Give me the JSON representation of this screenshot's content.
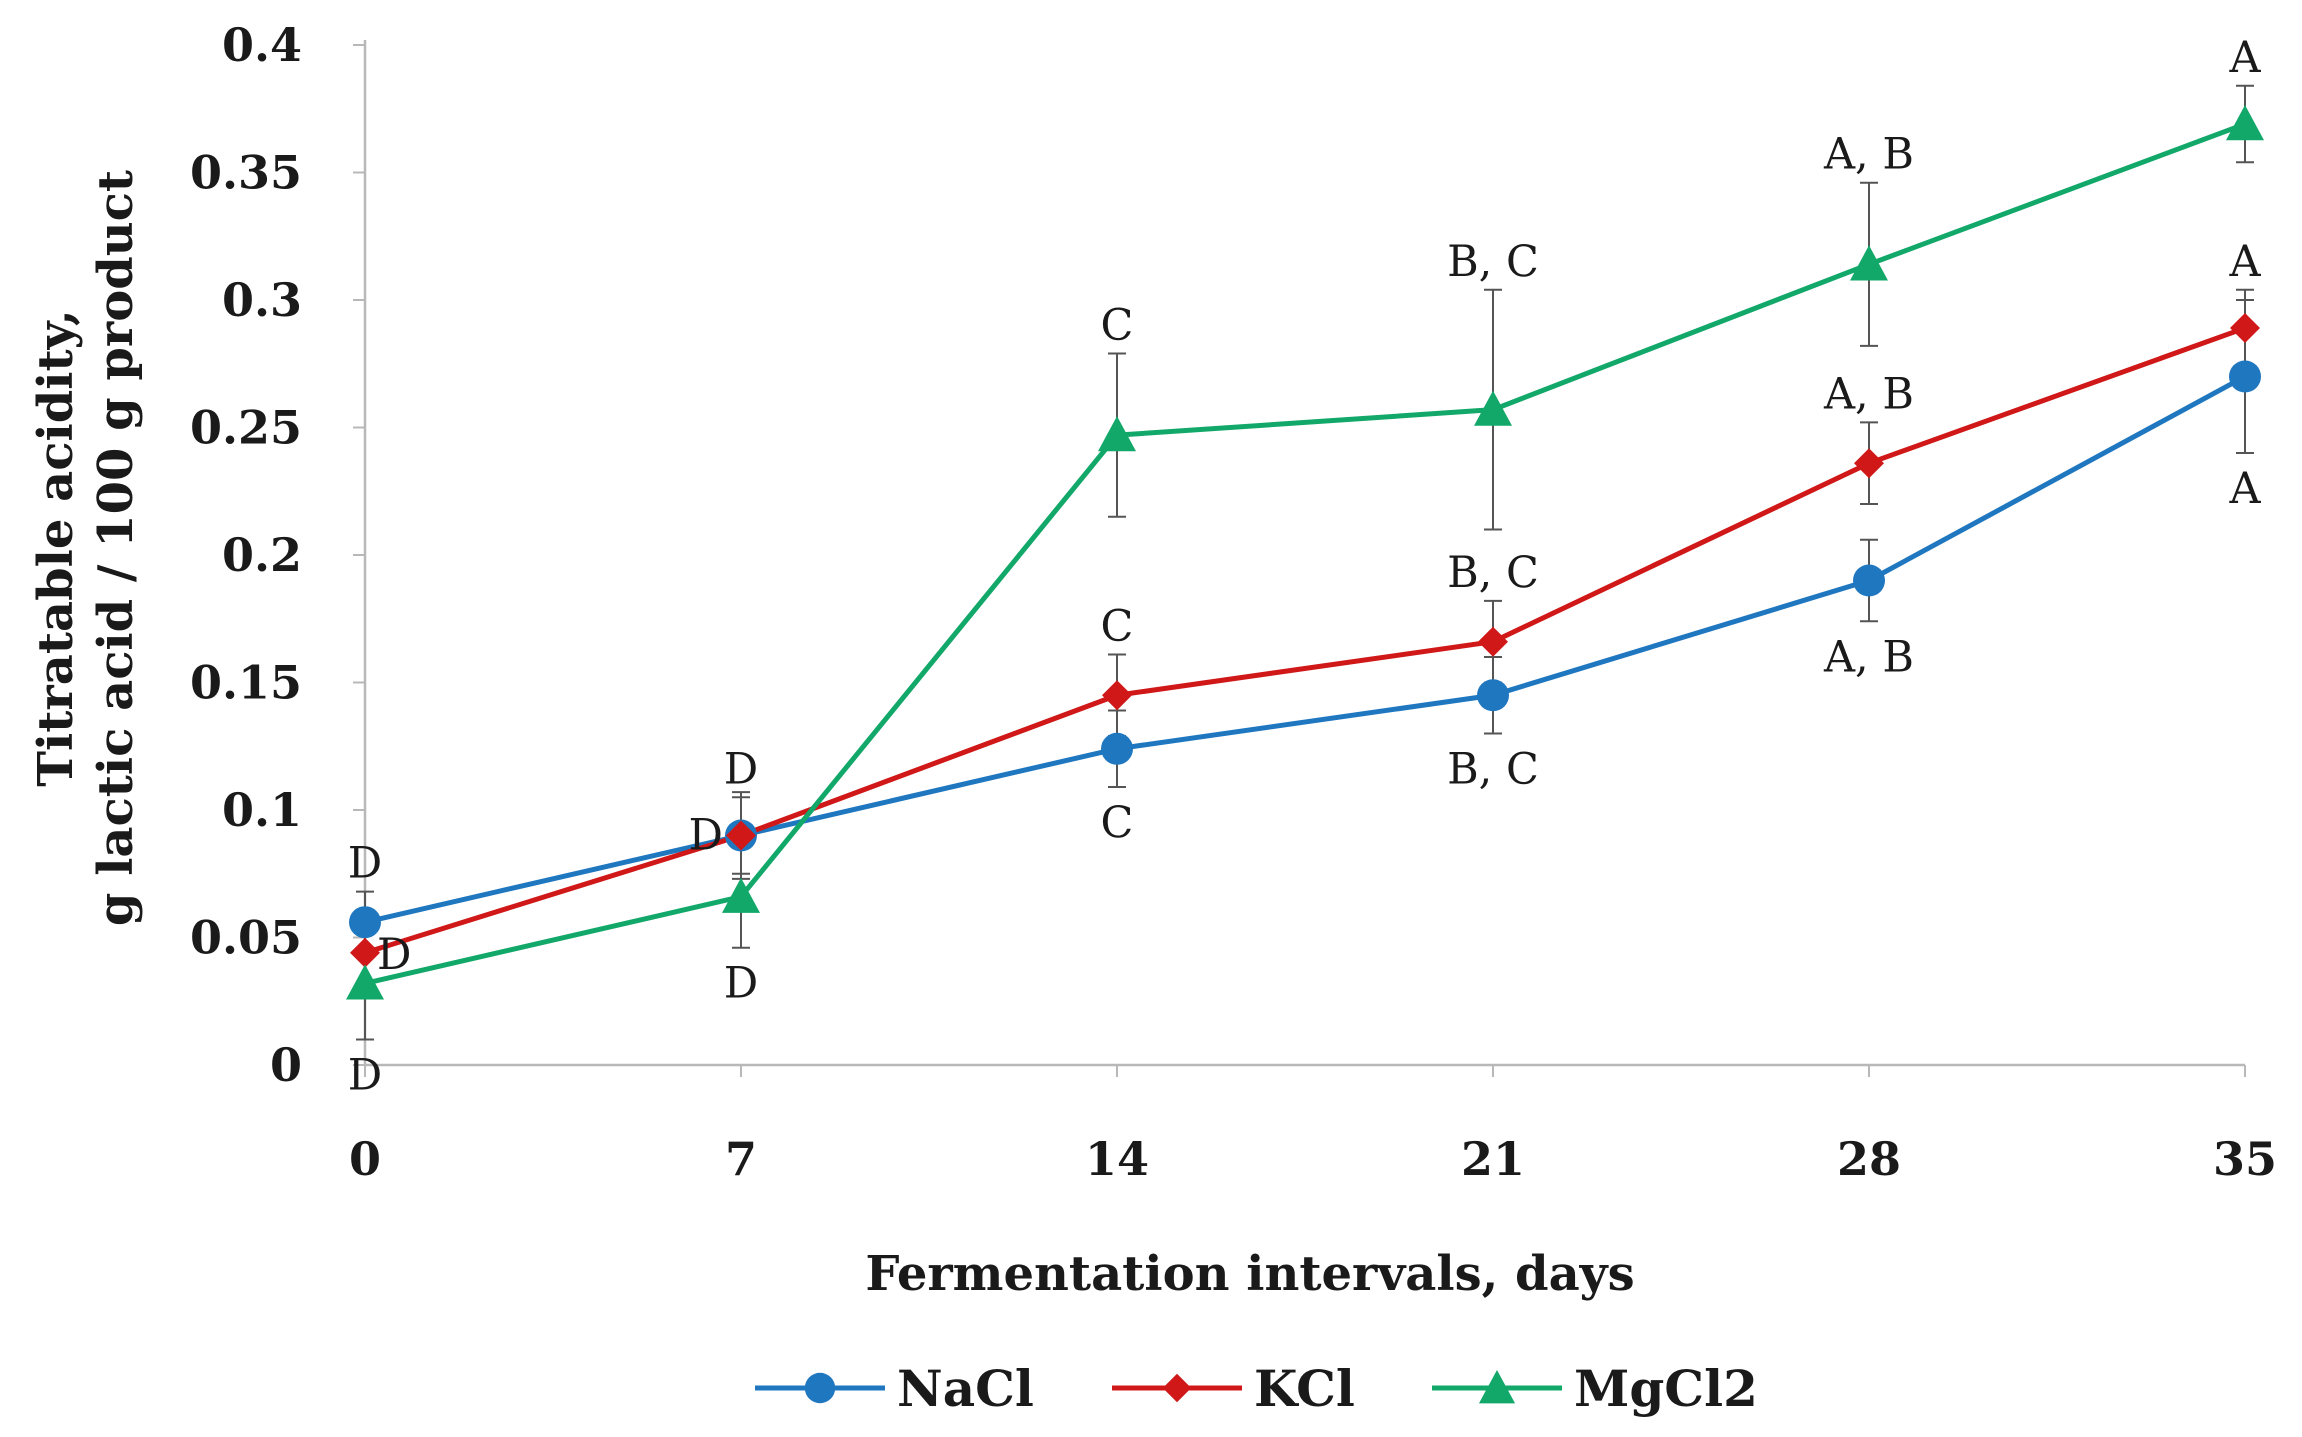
{
  "chart_data": {
    "type": "line",
    "title": "",
    "xlabel": "Fermentation intervals, days",
    "ylabel_line1": "Titratable acidity,",
    "ylabel_line2": "g lactic acid / 100 g product",
    "x": [
      0,
      7,
      14,
      21,
      28,
      35
    ],
    "x_tick_labels": [
      "0",
      "7",
      "14",
      "21",
      "28",
      "35"
    ],
    "xlim": [
      0,
      35
    ],
    "ylim": [
      0,
      0.4
    ],
    "y_ticks": [
      0,
      0.05,
      0.1,
      0.15,
      0.2,
      0.25,
      0.3,
      0.35,
      0.4
    ],
    "y_tick_labels": [
      "0",
      "0.05",
      "0.1",
      "0.15",
      "0.2",
      "0.25",
      "0.3",
      "0.35",
      "0.4"
    ],
    "grid": false,
    "legend_position": "bottom",
    "series": [
      {
        "name": "NaCl",
        "color": "#1f77c0",
        "marker": "circle",
        "values": [
          0.056,
          0.09,
          0.124,
          0.145,
          0.19,
          0.27
        ],
        "errors": [
          0.012,
          0.015,
          0.015,
          0.015,
          0.016,
          0.03
        ],
        "annotations": [
          "D",
          "D",
          "C",
          "B, C",
          "A, B",
          "A"
        ],
        "ann_pos": [
          "above",
          "above",
          "below",
          "below",
          "below",
          "below"
        ]
      },
      {
        "name": "KCl",
        "color": "#d01818",
        "marker": "diamond",
        "values": [
          0.044,
          0.09,
          0.145,
          0.166,
          0.236,
          0.289
        ],
        "errors": [
          0.012,
          0.017,
          0.016,
          0.016,
          0.016,
          0.015
        ],
        "annotations": [
          "D",
          "D",
          "C",
          "B, C",
          "A, B",
          "A"
        ],
        "ann_pos": [
          "right",
          "left",
          "above",
          "above",
          "above",
          "above"
        ]
      },
      {
        "name": "MgCl2",
        "color": "#12a86a",
        "marker": "triangle",
        "values": [
          0.032,
          0.066,
          0.247,
          0.257,
          0.314,
          0.369
        ],
        "errors": [
          0.022,
          0.02,
          0.032,
          0.047,
          0.032,
          0.015
        ],
        "annotations": [
          "D",
          "D",
          "C",
          "B, C",
          "A, B",
          "A"
        ],
        "ann_pos": [
          "below",
          "below",
          "above",
          "above",
          "above",
          "above"
        ]
      }
    ]
  }
}
